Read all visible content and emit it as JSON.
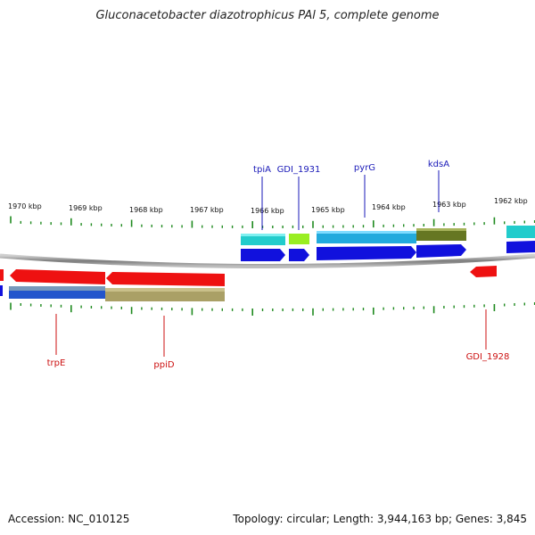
{
  "title": "Gluconacetobacter diazotrophicus PAl 5, complete genome",
  "footer": {
    "accession": "Accession: NC_010125",
    "info": "Topology: circular; Length: 3,944,163 bp; Genes: 3,845"
  },
  "kbp_labels": [
    "1970 kbp",
    "1969 kbp",
    "1968 kbp",
    "1967 kbp",
    "1966 kbp",
    "1965 kbp",
    "1964 kbp",
    "1963 kbp",
    "1962 kbp"
  ],
  "genes_top": [
    "tpiA",
    "GDI_1931",
    "pyrG",
    "kdsA"
  ],
  "genes_bottom": [
    "trpE",
    "ppiD",
    "GDI_1928"
  ],
  "colors": {
    "label_top": "#1a1ab8",
    "label_bottom": "#cc1111",
    "tick": "#1f8a1f",
    "backbone": "#8a8a8a",
    "gene_red": "#ee1111",
    "gene_blue": "#1111dd",
    "cog_cyan": "#22cccc",
    "cog_lime": "#99ee22",
    "cog_sky": "#22aadd",
    "cog_olive": "#667722",
    "cog_khaki": "#aaa066",
    "cog_blue": "#2255cc"
  }
}
